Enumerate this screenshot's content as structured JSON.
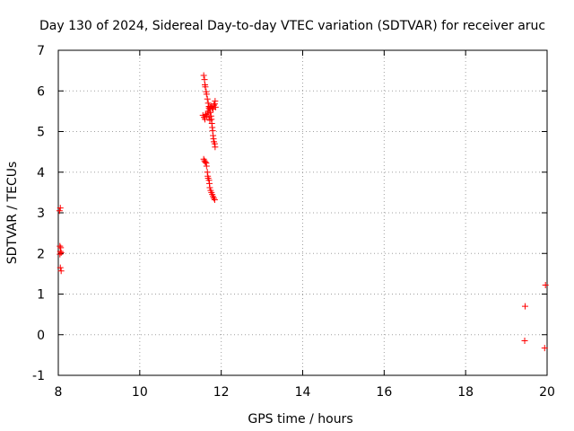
{
  "chart_data": {
    "type": "scatter",
    "title": "Day 130 of 2024, Sidereal Day-to-day VTEC variation (SDTVAR) for receiver aruc",
    "xlabel": "GPS time / hours",
    "ylabel": "SDTVAR / TECUs",
    "xlim": [
      8,
      20
    ],
    "ylim": [
      -1,
      7
    ],
    "xticks": [
      "8",
      "10",
      "12",
      "14",
      "16",
      "18",
      "20"
    ],
    "yticks": [
      "-1",
      "0",
      "1",
      "2",
      "3",
      "4",
      "5",
      "6",
      "7"
    ],
    "grid": true,
    "marker": "+",
    "color": "#ff0000",
    "series": [
      {
        "name": "SDTVAR",
        "points": [
          [
            8.03,
            3.05
          ],
          [
            8.05,
            3.12
          ],
          [
            8.04,
            2.18
          ],
          [
            8.06,
            2.14
          ],
          [
            8.05,
            2.05
          ],
          [
            8.07,
            2.02
          ],
          [
            8.04,
            1.98
          ],
          [
            8.05,
            1.65
          ],
          [
            8.07,
            1.57
          ],
          [
            11.57,
            6.38
          ],
          [
            11.59,
            6.28
          ],
          [
            11.6,
            6.15
          ],
          [
            11.61,
            6.1
          ],
          [
            11.63,
            5.98
          ],
          [
            11.64,
            5.92
          ],
          [
            11.66,
            5.8
          ],
          [
            11.68,
            5.7
          ],
          [
            11.7,
            5.62
          ],
          [
            11.72,
            5.55
          ],
          [
            11.73,
            5.47
          ],
          [
            11.75,
            5.38
          ],
          [
            11.76,
            5.3
          ],
          [
            11.77,
            5.2
          ],
          [
            11.78,
            5.1
          ],
          [
            11.79,
            5.02
          ],
          [
            11.8,
            4.9
          ],
          [
            11.81,
            4.82
          ],
          [
            11.82,
            4.75
          ],
          [
            11.84,
            4.7
          ],
          [
            11.85,
            4.62
          ],
          [
            11.55,
            5.4
          ],
          [
            11.58,
            5.35
          ],
          [
            11.6,
            5.3
          ],
          [
            11.62,
            5.42
          ],
          [
            11.64,
            5.38
          ],
          [
            11.66,
            5.45
          ],
          [
            11.68,
            5.5
          ],
          [
            11.7,
            5.58
          ],
          [
            11.73,
            5.6
          ],
          [
            11.76,
            5.62
          ],
          [
            11.78,
            5.58
          ],
          [
            11.8,
            5.55
          ],
          [
            11.82,
            5.65
          ],
          [
            11.84,
            5.68
          ],
          [
            11.85,
            5.75
          ],
          [
            11.86,
            5.6
          ],
          [
            11.7,
            5.35
          ],
          [
            11.72,
            5.28
          ],
          [
            11.57,
            4.32
          ],
          [
            11.59,
            4.28
          ],
          [
            11.61,
            4.25
          ],
          [
            11.63,
            4.22
          ],
          [
            11.64,
            4.15
          ],
          [
            11.66,
            4.0
          ],
          [
            11.67,
            3.9
          ],
          [
            11.68,
            3.85
          ],
          [
            11.7,
            3.8
          ],
          [
            11.71,
            3.72
          ],
          [
            11.72,
            3.62
          ],
          [
            11.74,
            3.55
          ],
          [
            11.76,
            3.5
          ],
          [
            11.78,
            3.45
          ],
          [
            11.8,
            3.4
          ],
          [
            11.82,
            3.36
          ],
          [
            11.84,
            3.32
          ],
          [
            19.46,
            0.7
          ],
          [
            19.45,
            -0.15
          ],
          [
            19.96,
            1.22
          ],
          [
            19.94,
            -0.33
          ]
        ]
      }
    ]
  }
}
